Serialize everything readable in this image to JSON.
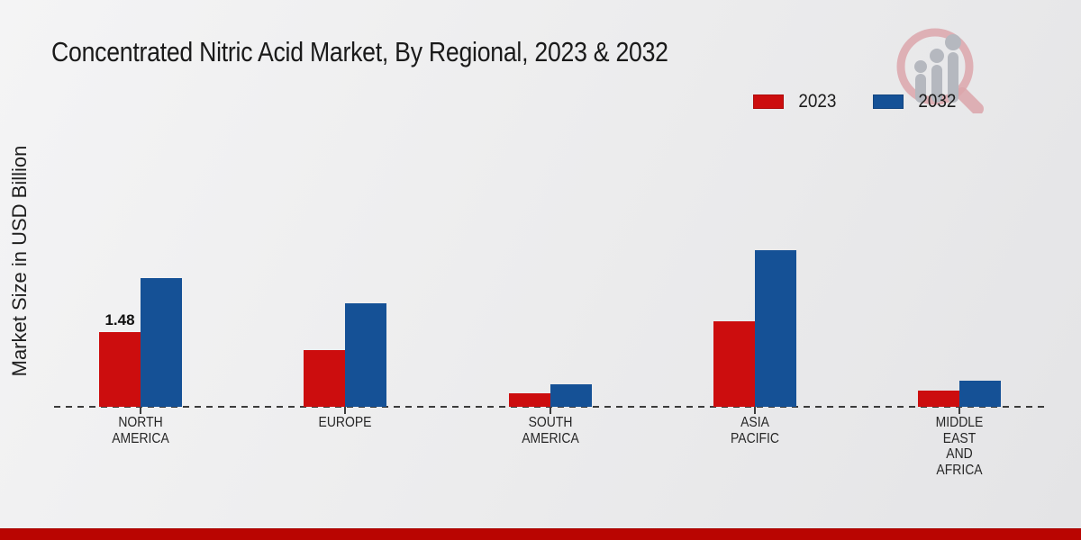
{
  "header": {
    "title": "Concentrated Nitric Acid Market, By Regional, 2023 & 2032"
  },
  "y_axis": {
    "label": "Market Size in USD Billion"
  },
  "legend": {
    "position": "top-right",
    "items": [
      {
        "label": "2023",
        "color": "#cc0d0e"
      },
      {
        "label": "2032",
        "color": "#155196"
      }
    ]
  },
  "chart_data": {
    "type": "bar",
    "title": "Concentrated Nitric Acid Market, By Regional, 2023 & 2032",
    "categories": [
      "NORTH AMERICA",
      "EUROPE",
      "SOUTH AMERICA",
      "ASIA PACIFIC",
      "MIDDLE EAST AND AFRICA"
    ],
    "category_label_lines": [
      [
        "NORTH",
        "AMERICA"
      ],
      [
        "EUROPE"
      ],
      [
        "SOUTH",
        "AMERICA"
      ],
      [
        "ASIA",
        "PACIFIC"
      ],
      [
        "MIDDLE",
        "EAST",
        "AND",
        "AFRICA"
      ]
    ],
    "series": [
      {
        "name": "2023",
        "color": "#cc0d0e",
        "values": [
          1.48,
          1.12,
          0.27,
          1.69,
          0.32
        ]
      },
      {
        "name": "2032",
        "color": "#155196",
        "values": [
          2.55,
          2.05,
          0.45,
          3.1,
          0.52
        ]
      }
    ],
    "data_labels": [
      {
        "series": "2023",
        "series_index": 0,
        "category": "NORTH AMERICA",
        "category_index": 0,
        "text": "1.48"
      }
    ],
    "xlabel": "",
    "ylabel": "Market Size in USD Billion",
    "ylim": [
      0,
      3.5
    ],
    "grid": false,
    "baseline_style": "dashed",
    "legend_position": "top-right"
  },
  "branding": {
    "logo": "market-research-magnifier-logo"
  },
  "footer": {
    "stripe_color": "#b90501"
  }
}
